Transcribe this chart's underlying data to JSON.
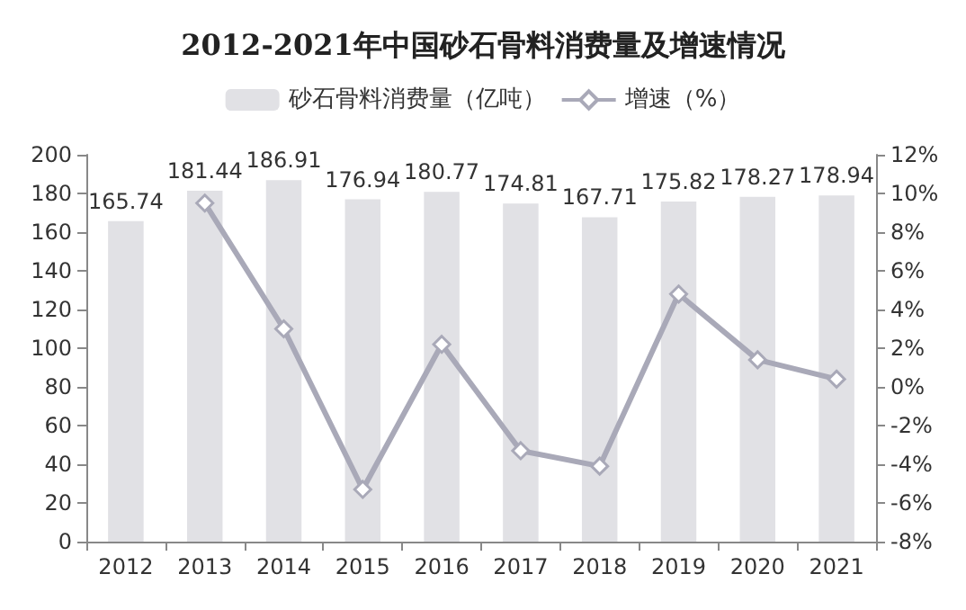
{
  "chart_data": {
    "type": "bar",
    "title": "2012-2021年中国砂石骨料消费量及增速情况",
    "categories": [
      "2012",
      "2013",
      "2014",
      "2015",
      "2016",
      "2017",
      "2018",
      "2019",
      "2020",
      "2021"
    ],
    "series": [
      {
        "name": "砂石骨料消费量（亿吨）",
        "color": "#e1e1e5",
        "values": [
          165.74,
          181.44,
          186.91,
          176.94,
          180.77,
          174.81,
          167.71,
          175.82,
          178.27,
          178.94
        ]
      },
      {
        "name": "增速（%）",
        "type": "line",
        "axis": "y2",
        "color": "#a9a9b8",
        "marker": "diamond",
        "values": [
          null,
          9.5,
          3.0,
          -5.3,
          2.2,
          -3.3,
          -4.1,
          4.8,
          1.4,
          0.4
        ]
      }
    ],
    "value_labels": [
      "165.74",
      "181.44",
      "186.91",
      "176.94",
      "180.77",
      "174.81",
      "167.71",
      "175.82",
      "178.27",
      "178.94"
    ],
    "ylim": [
      0,
      200
    ],
    "yticks": [
      0,
      20,
      40,
      60,
      80,
      100,
      120,
      140,
      160,
      180,
      200
    ],
    "y2lim": [
      -8,
      12
    ],
    "y2ticks": [
      {
        "value": -8,
        "label": "-8%"
      },
      {
        "value": -6,
        "label": "-6%"
      },
      {
        "value": -4,
        "label": "-4%"
      },
      {
        "value": -2,
        "label": "-2%"
      },
      {
        "value": 0,
        "label": "0%"
      },
      {
        "value": 2,
        "label": "2%"
      },
      {
        "value": 4,
        "label": "4%"
      },
      {
        "value": 6,
        "label": "6%"
      },
      {
        "value": 8,
        "label": "8%"
      },
      {
        "value": 10,
        "label": "10%"
      },
      {
        "value": 12,
        "label": "12%"
      }
    ],
    "grid": false,
    "legend": "top"
  }
}
